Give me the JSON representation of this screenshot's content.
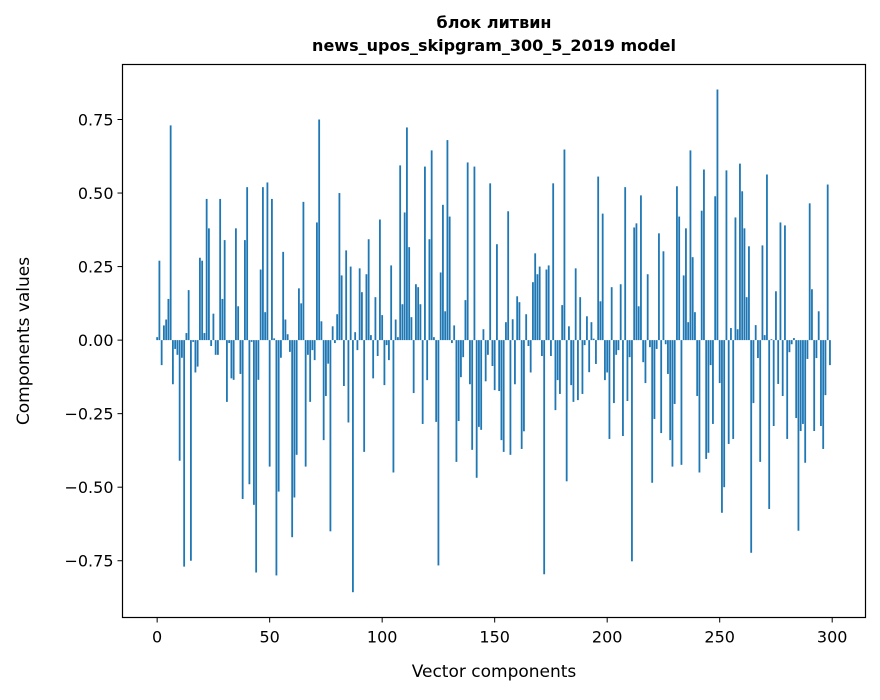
{
  "chart_data": {
    "type": "bar",
    "title": [
      "блок литвин",
      "news_upos_skipgram_300_5_2019 model"
    ],
    "xlabel": "Vector components",
    "ylabel": "Components values",
    "xlim": [
      -15.4,
      314.8
    ],
    "ylim": [
      -0.943,
      0.937
    ],
    "xticks": [
      0,
      50,
      100,
      150,
      200,
      250,
      300
    ],
    "xtick_labels": [
      "0",
      "50",
      "100",
      "150",
      "200",
      "250",
      "300"
    ],
    "yticks": [
      -0.75,
      -0.5,
      -0.25,
      0,
      0.25,
      0.5,
      0.75
    ],
    "ytick_labels": [
      "−0.75",
      "−0.50",
      "−0.25",
      "0.00",
      "0.25",
      "0.50",
      "0.75"
    ],
    "grid": false,
    "bar_color": "#1f77b4",
    "values": [
      0.01,
      0.27,
      -0.085,
      0.05,
      0.07,
      0.14,
      0.73,
      -0.15,
      -0.03,
      -0.05,
      -0.41,
      -0.06,
      -0.77,
      0.024,
      0.17,
      -0.75,
      -0.006,
      -0.11,
      -0.09,
      0.28,
      0.27,
      0.024,
      0.48,
      0.38,
      -0.02,
      0.09,
      -0.05,
      -0.05,
      0.48,
      0.14,
      0.34,
      -0.21,
      -0.01,
      -0.13,
      -0.135,
      0.38,
      0.115,
      -0.115,
      -0.54,
      0.34,
      0.52,
      -0.49,
      -0.006,
      -0.56,
      -0.79,
      -0.135,
      0.24,
      0.52,
      0.095,
      0.536,
      -0.43,
      0.48,
      0.006,
      -0.8,
      -0.515,
      -0.06,
      0.3,
      0.07,
      0.02,
      -0.04,
      -0.67,
      -0.535,
      -0.39,
      0.176,
      0.125,
      0.47,
      -0.43,
      -0.05,
      -0.21,
      -0.034,
      -0.068,
      0.4,
      0.75,
      0.064,
      -0.34,
      -0.19,
      -0.08,
      -0.65,
      0.047,
      -0.01,
      0.088,
      0.5,
      0.22,
      -0.156,
      0.305,
      -0.28,
      0.25,
      -0.857,
      0.027,
      -0.034,
      0.244,
      0.163,
      -0.38,
      0.224,
      0.343,
      0.017,
      -0.13,
      0.146,
      -0.054,
      0.41,
      0.085,
      -0.153,
      -0.017,
      -0.068,
      0.254,
      -0.45,
      0.07,
      0.01,
      0.594,
      0.122,
      0.434,
      0.723,
      0.316,
      0.078,
      -0.18,
      0.19,
      0.18,
      0.122,
      -0.285,
      0.59,
      -0.136,
      0.343,
      0.645,
      0.01,
      -0.278,
      -0.766,
      0.23,
      0.46,
      0.098,
      0.68,
      0.42,
      -0.01,
      0.05,
      -0.414,
      -0.275,
      -0.126,
      -0.058,
      0.136,
      0.604,
      -0.15,
      -0.373,
      0.59,
      -0.468,
      -0.295,
      -0.305,
      0.037,
      -0.14,
      -0.05,
      0.533,
      -0.088,
      -0.17,
      0.326,
      -0.173,
      -0.34,
      -0.38,
      0.061,
      0.438,
      -0.39,
      0.071,
      -0.15,
      0.149,
      0.129,
      -0.37,
      -0.31,
      0.088,
      -0.02,
      -0.11,
      0.197,
      0.295,
      0.224,
      0.25,
      -0.054,
      -0.796,
      0.24,
      0.254,
      -0.054,
      0.533,
      -0.238,
      -0.136,
      -0.183,
      0.119,
      0.648,
      -0.48,
      0.047,
      -0.153,
      -0.21,
      0.244,
      -0.204,
      0.146,
      -0.183,
      -0.017,
      0.081,
      -0.109,
      0.061,
      0.005,
      -0.081,
      0.556,
      0.132,
      0.43,
      -0.136,
      -0.11,
      -0.336,
      0.18,
      -0.214,
      -0.05,
      -0.034,
      0.19,
      -0.326,
      0.52,
      -0.207,
      -0.058,
      -0.752,
      0.383,
      0.397,
      0.115,
      0.492,
      -0.075,
      -0.146,
      0.224,
      -0.024,
      -0.485,
      -0.268,
      -0.03,
      0.363,
      -0.316,
      0.302,
      -0.014,
      -0.115,
      -0.34,
      -0.43,
      -0.217,
      0.523,
      0.42,
      -0.424,
      0.22,
      0.38,
      0.061,
      0.645,
      0.282,
      0.095,
      -0.19,
      -0.45,
      0.44,
      0.58,
      -0.404,
      -0.383,
      -0.085,
      -0.285,
      0.489,
      0.852,
      -0.146,
      -0.587,
      -0.5,
      0.577,
      -0.353,
      0.041,
      -0.336,
      0.417,
      0.037,
      0.6,
      0.506,
      0.38,
      0.146,
      0.319,
      -0.723,
      -0.214,
      0.051,
      -0.061,
      -0.414,
      0.322,
      0.017,
      0.563,
      -0.574,
      0.003,
      -0.292,
      0.166,
      -0.149,
      0.4,
      -0.19,
      0.39,
      -0.336,
      -0.041,
      -0.014,
      0.007,
      -0.265,
      -0.648,
      -0.309,
      -0.285,
      -0.417,
      -0.064,
      0.465,
      0.173,
      -0.309,
      -0.061,
      0.098,
      -0.292,
      -0.37,
      -0.187,
      0.529,
      -0.085
    ]
  }
}
